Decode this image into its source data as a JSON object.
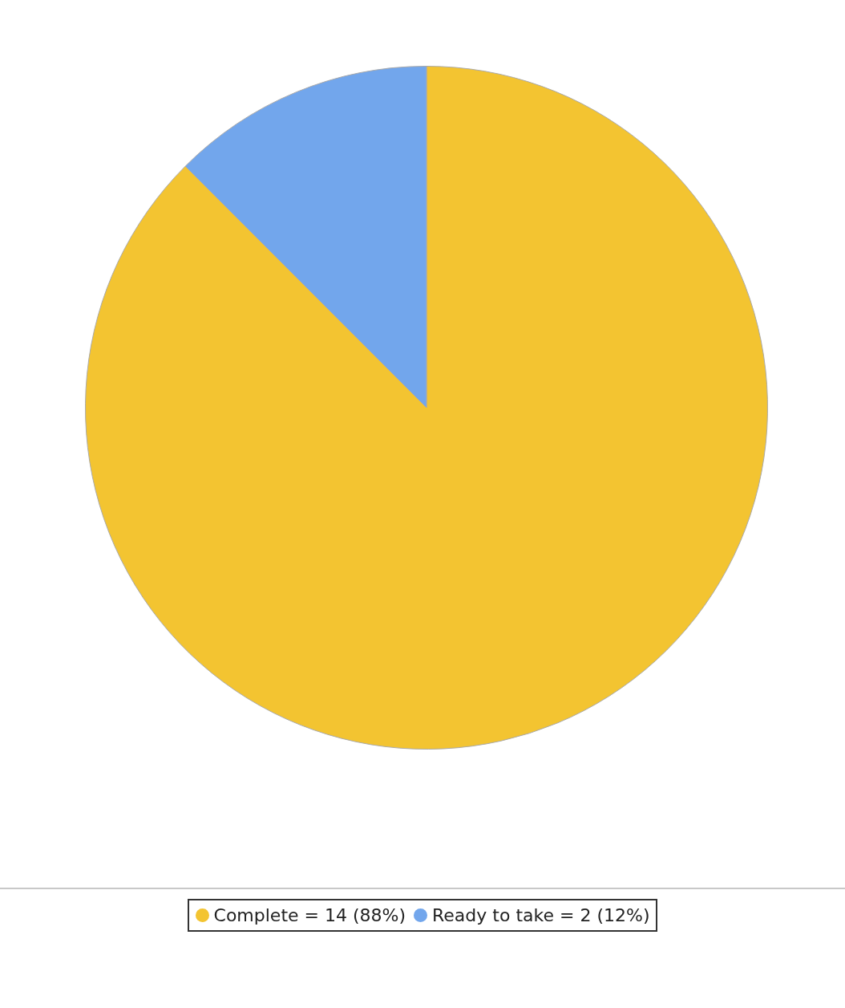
{
  "chart_data": {
    "type": "pie",
    "categories": [
      "Complete = 14 (88%)",
      "Ready to take = 2 (12%)"
    ],
    "values": [
      14,
      2
    ],
    "colors": [
      "#f3c431",
      "#72a6ec"
    ],
    "legend": "bottom"
  }
}
